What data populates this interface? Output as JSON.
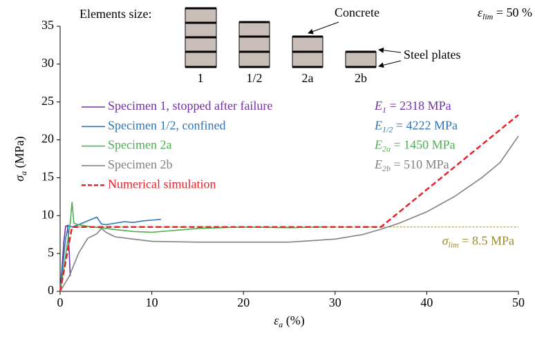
{
  "chart_data": {
    "type": "line",
    "xlabel": {
      "symbol": "ε",
      "subscript": "a",
      "text": " (%)"
    },
    "ylabel": {
      "symbol": "σ",
      "subscript": "a",
      "text": " (MPa)"
    },
    "xlim": [
      0,
      50
    ],
    "xticks": [
      0,
      10,
      20,
      30,
      40,
      50
    ],
    "ylim": [
      0,
      35
    ],
    "yticks": [
      0,
      5,
      10,
      15,
      20,
      25,
      30,
      35
    ],
    "grid": false,
    "legend": "upper left",
    "series": [
      {
        "name": "Specimen 1, stopped after failure",
        "color": "#7030a0",
        "line_style": "solid",
        "x": [
          0,
          0.2,
          0.4,
          0.6,
          0.8,
          0.9,
          1.0,
          1.1
        ],
        "values": [
          0,
          3,
          6.5,
          8.6,
          8.7,
          7.5,
          5,
          2
        ]
      },
      {
        "name": "Specimen 1/2, confined",
        "color": "#2e75b6",
        "line_style": "solid",
        "x": [
          0,
          0.3,
          0.6,
          0.9,
          1.3,
          2,
          3,
          4,
          4.5,
          5,
          6,
          7,
          8,
          9,
          10,
          11
        ],
        "values": [
          0,
          3.5,
          7,
          8.7,
          8.5,
          8.8,
          9.3,
          9.8,
          8.9,
          8.8,
          9,
          9.2,
          9.1,
          9.3,
          9.4,
          9.5
        ]
      },
      {
        "name": "Specimen 2a",
        "color": "#4caf50",
        "line_style": "solid",
        "x": [
          0,
          0.4,
          0.8,
          1.1,
          1.3,
          1.5,
          2,
          3,
          5,
          8,
          10,
          15,
          20,
          25,
          28.5
        ],
        "values": [
          0,
          3,
          6.5,
          9,
          11.8,
          9,
          8.8,
          8.6,
          8.3,
          7.9,
          7.8,
          8.3,
          8.5,
          8.4,
          8.5
        ]
      },
      {
        "name": "Specimen 2b",
        "color": "#808080",
        "line_style": "solid",
        "x": [
          0,
          1,
          2,
          3,
          4,
          4.5,
          5,
          6,
          8,
          10,
          15,
          20,
          25,
          30,
          33,
          35,
          37,
          40,
          43,
          46,
          48,
          50
        ],
        "values": [
          0,
          2,
          5,
          7,
          7.6,
          8.3,
          7.8,
          7.2,
          6.9,
          6.6,
          6.5,
          6.5,
          6.5,
          6.9,
          7.5,
          8.2,
          9,
          10.5,
          12.5,
          15,
          17,
          20.5
        ]
      },
      {
        "name": "Numerical simulation",
        "color": "#e8202a",
        "line_style": "dashed",
        "x": [
          0,
          1.3,
          35,
          50
        ],
        "values": [
          0,
          8.5,
          8.5,
          23.3
        ]
      }
    ],
    "moduli": [
      {
        "symbol": "E",
        "subscript": "1",
        "text": " = 2318 MPa",
        "color": "#7030a0"
      },
      {
        "symbol": "E",
        "subscript": "1/2",
        "text": " = 4222 MPa",
        "color": "#2e75b6"
      },
      {
        "symbol": "E",
        "subscript": "2a",
        "text": " = 1450 MPa",
        "color": "#4caf50"
      },
      {
        "symbol": "E",
        "subscript": "2b",
        "text": " = 510 MPa",
        "color": "#808080"
      }
    ],
    "reference_line": {
      "value": 8.5,
      "color": "#9c8a2a",
      "x_start": 2,
      "symbol": "σ",
      "subscript": "lim",
      "text": " = 8.5 MPa"
    },
    "strain_limit": {
      "symbol": "ε",
      "subscript": "lim",
      "text": " = 50 %"
    },
    "inset": {
      "title": "Elements size:",
      "labels": [
        "1",
        "1/2",
        "2a",
        "2b"
      ],
      "concrete": "Concrete",
      "steel": "Steel plates"
    }
  }
}
